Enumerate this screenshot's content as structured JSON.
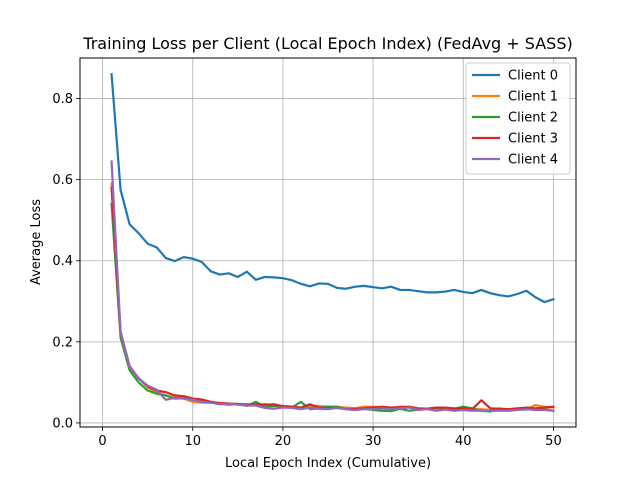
{
  "chart_data": {
    "type": "line",
    "title": "Training Loss per Client (Local Epoch Index) (FedAvg + SASS)",
    "xlabel": "Local Epoch Index (Cumulative)",
    "ylabel": "Average Loss",
    "xlim": [
      -2.5,
      52.5
    ],
    "ylim": [
      -0.01,
      0.9
    ],
    "xticks": [
      0,
      10,
      20,
      30,
      40,
      50
    ],
    "yticks": [
      0.0,
      0.2,
      0.4,
      0.6,
      0.8
    ],
    "xtick_labels": [
      "0",
      "10",
      "20",
      "30",
      "40",
      "50"
    ],
    "ytick_labels": [
      "0.0",
      "0.2",
      "0.4",
      "0.6",
      "0.8"
    ],
    "grid": true,
    "legend_position": "top-right",
    "x": [
      1,
      2,
      3,
      4,
      5,
      6,
      7,
      8,
      9,
      10,
      11,
      12,
      13,
      14,
      15,
      16,
      17,
      18,
      19,
      20,
      21,
      22,
      23,
      24,
      25,
      26,
      27,
      28,
      29,
      30,
      31,
      32,
      33,
      34,
      35,
      36,
      37,
      38,
      39,
      40,
      41,
      42,
      43,
      44,
      45,
      46,
      47,
      48,
      49,
      50
    ],
    "series": [
      {
        "name": "Client 0",
        "color": "#1f77b4",
        "values": [
          0.86,
          0.575,
          0.49,
          0.468,
          0.442,
          0.433,
          0.407,
          0.399,
          0.409,
          0.405,
          0.397,
          0.374,
          0.366,
          0.369,
          0.36,
          0.373,
          0.353,
          0.36,
          0.359,
          0.357,
          0.352,
          0.343,
          0.337,
          0.344,
          0.343,
          0.333,
          0.331,
          0.336,
          0.338,
          0.335,
          0.332,
          0.336,
          0.328,
          0.328,
          0.325,
          0.322,
          0.322,
          0.324,
          0.328,
          0.323,
          0.32,
          0.328,
          0.32,
          0.315,
          0.312,
          0.318,
          0.326,
          0.31,
          0.298,
          0.305
        ]
      },
      {
        "name": "Client 1",
        "color": "#ff7f0e",
        "values": [
          0.59,
          0.22,
          0.135,
          0.11,
          0.088,
          0.075,
          0.068,
          0.063,
          0.06,
          0.052,
          0.05,
          0.05,
          0.049,
          0.048,
          0.047,
          0.046,
          0.045,
          0.043,
          0.047,
          0.04,
          0.04,
          0.038,
          0.041,
          0.042,
          0.04,
          0.04,
          0.038,
          0.036,
          0.04,
          0.04,
          0.038,
          0.036,
          0.04,
          0.039,
          0.036,
          0.035,
          0.036,
          0.035,
          0.034,
          0.033,
          0.033,
          0.034,
          0.032,
          0.034,
          0.033,
          0.035,
          0.034,
          0.044,
          0.04,
          0.038
        ]
      },
      {
        "name": "Client 2",
        "color": "#2ca02c",
        "values": [
          0.54,
          0.21,
          0.13,
          0.1,
          0.08,
          0.072,
          0.068,
          0.06,
          0.061,
          0.058,
          0.052,
          0.05,
          0.047,
          0.045,
          0.047,
          0.042,
          0.052,
          0.04,
          0.042,
          0.04,
          0.038,
          0.052,
          0.034,
          0.036,
          0.04,
          0.04,
          0.034,
          0.032,
          0.035,
          0.032,
          0.03,
          0.029,
          0.035,
          0.03,
          0.033,
          0.035,
          0.037,
          0.036,
          0.035,
          0.04,
          0.036,
          0.03,
          0.028,
          0.036,
          0.03,
          0.033,
          0.033,
          0.035,
          0.034,
          0.03
        ]
      },
      {
        "name": "Client 3",
        "color": "#d62728",
        "values": [
          0.58,
          0.225,
          0.14,
          0.11,
          0.09,
          0.08,
          0.076,
          0.068,
          0.066,
          0.06,
          0.058,
          0.052,
          0.049,
          0.048,
          0.046,
          0.046,
          0.045,
          0.046,
          0.045,
          0.042,
          0.04,
          0.038,
          0.046,
          0.038,
          0.036,
          0.037,
          0.034,
          0.035,
          0.036,
          0.038,
          0.04,
          0.038,
          0.039,
          0.04,
          0.036,
          0.035,
          0.038,
          0.038,
          0.036,
          0.036,
          0.034,
          0.056,
          0.036,
          0.035,
          0.034,
          0.036,
          0.038,
          0.036,
          0.038,
          0.04
        ]
      },
      {
        "name": "Client 4",
        "color": "#9467bd",
        "values": [
          0.645,
          0.225,
          0.138,
          0.11,
          0.092,
          0.082,
          0.057,
          0.062,
          0.06,
          0.057,
          0.052,
          0.05,
          0.046,
          0.048,
          0.045,
          0.043,
          0.043,
          0.037,
          0.035,
          0.038,
          0.037,
          0.034,
          0.038,
          0.035,
          0.034,
          0.037,
          0.034,
          0.032,
          0.034,
          0.034,
          0.036,
          0.034,
          0.036,
          0.038,
          0.032,
          0.034,
          0.03,
          0.033,
          0.03,
          0.032,
          0.03,
          0.03,
          0.03,
          0.03,
          0.03,
          0.032,
          0.034,
          0.032,
          0.032,
          0.03
        ]
      }
    ]
  }
}
